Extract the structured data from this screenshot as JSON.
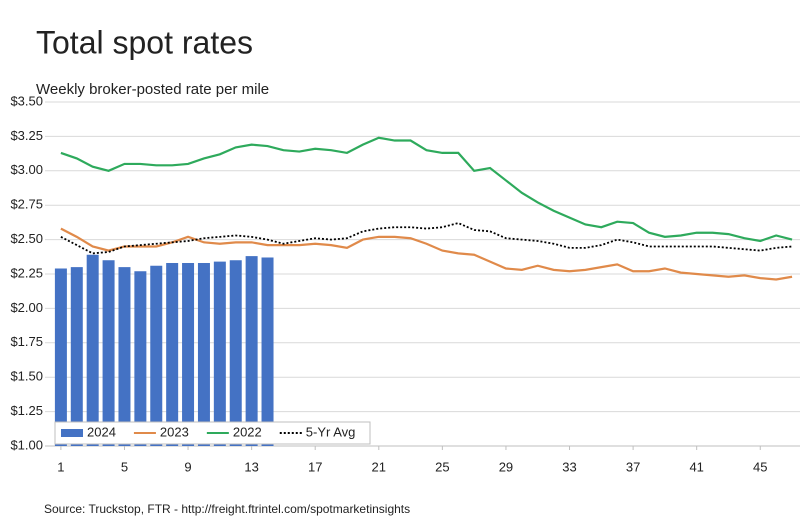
{
  "chart_data": {
    "type": "combo",
    "title": "Total spot rates",
    "subtitle": "Weekly broker-posted rate per mile",
    "source": "Source: Truckstop, FTR - http://freight.ftrintel.com/spotmarketinsights",
    "x": [
      1,
      2,
      3,
      4,
      5,
      6,
      7,
      8,
      9,
      10,
      11,
      12,
      13,
      14,
      15,
      16,
      17,
      18,
      19,
      20,
      21,
      22,
      23,
      24,
      25,
      26,
      27,
      28,
      29,
      30,
      31,
      32,
      33,
      34,
      35,
      36,
      37,
      38,
      39,
      40,
      41,
      42,
      43,
      44,
      45,
      46,
      47
    ],
    "xlim": [
      0,
      47.5
    ],
    "xticks": [
      1,
      5,
      9,
      13,
      17,
      21,
      25,
      29,
      33,
      37,
      41,
      45
    ],
    "ylim": [
      1.0,
      3.5
    ],
    "yticks": [
      {
        "value": 1.0,
        "label": "$1.00"
      },
      {
        "value": 1.25,
        "label": "$1.25"
      },
      {
        "value": 1.5,
        "label": "$1.50"
      },
      {
        "value": 1.75,
        "label": "$1.75"
      },
      {
        "value": 2.0,
        "label": "$2.00"
      },
      {
        "value": 2.25,
        "label": "$2.25"
      },
      {
        "value": 2.5,
        "label": "$2.50"
      },
      {
        "value": 2.75,
        "label": "$2.75"
      },
      {
        "value": 3.0,
        "label": "$3.00"
      },
      {
        "value": 3.25,
        "label": "$3.25"
      },
      {
        "value": 3.5,
        "label": "$3.50"
      }
    ],
    "grid": true,
    "legend": "lower left",
    "series": [
      {
        "name": "2024",
        "type": "bar",
        "color": "#4472c4",
        "values": [
          2.29,
          2.3,
          2.39,
          2.35,
          2.3,
          2.27,
          2.31,
          2.33,
          2.33,
          2.33,
          2.34,
          2.35,
          2.38,
          2.37,
          null,
          null,
          null,
          null,
          null,
          null,
          null,
          null,
          null,
          null,
          null,
          null,
          null,
          null,
          null,
          null,
          null,
          null,
          null,
          null,
          null,
          null,
          null,
          null,
          null,
          null,
          null,
          null,
          null,
          null,
          null,
          null,
          null
        ]
      },
      {
        "name": "2023",
        "type": "line",
        "color": "#e08a4a",
        "values": [
          2.58,
          2.52,
          2.45,
          2.42,
          2.45,
          2.45,
          2.45,
          2.48,
          2.52,
          2.48,
          2.47,
          2.48,
          2.48,
          2.46,
          2.46,
          2.46,
          2.47,
          2.46,
          2.44,
          2.5,
          2.52,
          2.52,
          2.51,
          2.47,
          2.42,
          2.4,
          2.39,
          2.34,
          2.29,
          2.28,
          2.31,
          2.28,
          2.27,
          2.28,
          2.3,
          2.32,
          2.27,
          2.27,
          2.29,
          2.26,
          2.25,
          2.24,
          2.23,
          2.24,
          2.22,
          2.21,
          2.23
        ]
      },
      {
        "name": "2022",
        "type": "line",
        "color": "#2eaa5c",
        "values": [
          3.13,
          3.09,
          3.03,
          3.0,
          3.05,
          3.05,
          3.04,
          3.04,
          3.05,
          3.09,
          3.12,
          3.17,
          3.19,
          3.18,
          3.15,
          3.14,
          3.16,
          3.15,
          3.13,
          3.19,
          3.24,
          3.22,
          3.22,
          3.15,
          3.13,
          3.13,
          3.0,
          3.02,
          2.93,
          2.84,
          2.77,
          2.71,
          2.66,
          2.61,
          2.59,
          2.63,
          2.62,
          2.55,
          2.52,
          2.53,
          2.55,
          2.55,
          2.54,
          2.51,
          2.49,
          2.53,
          2.5
        ]
      },
      {
        "name": "5-Yr Avg",
        "type": "line",
        "color": "#000000",
        "dash": true,
        "values": [
          2.52,
          2.46,
          2.4,
          2.41,
          2.45,
          2.46,
          2.47,
          2.48,
          2.49,
          2.51,
          2.52,
          2.53,
          2.52,
          2.5,
          2.47,
          2.49,
          2.51,
          2.5,
          2.51,
          2.56,
          2.58,
          2.59,
          2.59,
          2.58,
          2.59,
          2.62,
          2.57,
          2.56,
          2.51,
          2.5,
          2.49,
          2.47,
          2.44,
          2.44,
          2.46,
          2.5,
          2.48,
          2.45,
          2.45,
          2.45,
          2.45,
          2.45,
          2.44,
          2.43,
          2.42,
          2.44,
          2.45
        ]
      }
    ]
  }
}
